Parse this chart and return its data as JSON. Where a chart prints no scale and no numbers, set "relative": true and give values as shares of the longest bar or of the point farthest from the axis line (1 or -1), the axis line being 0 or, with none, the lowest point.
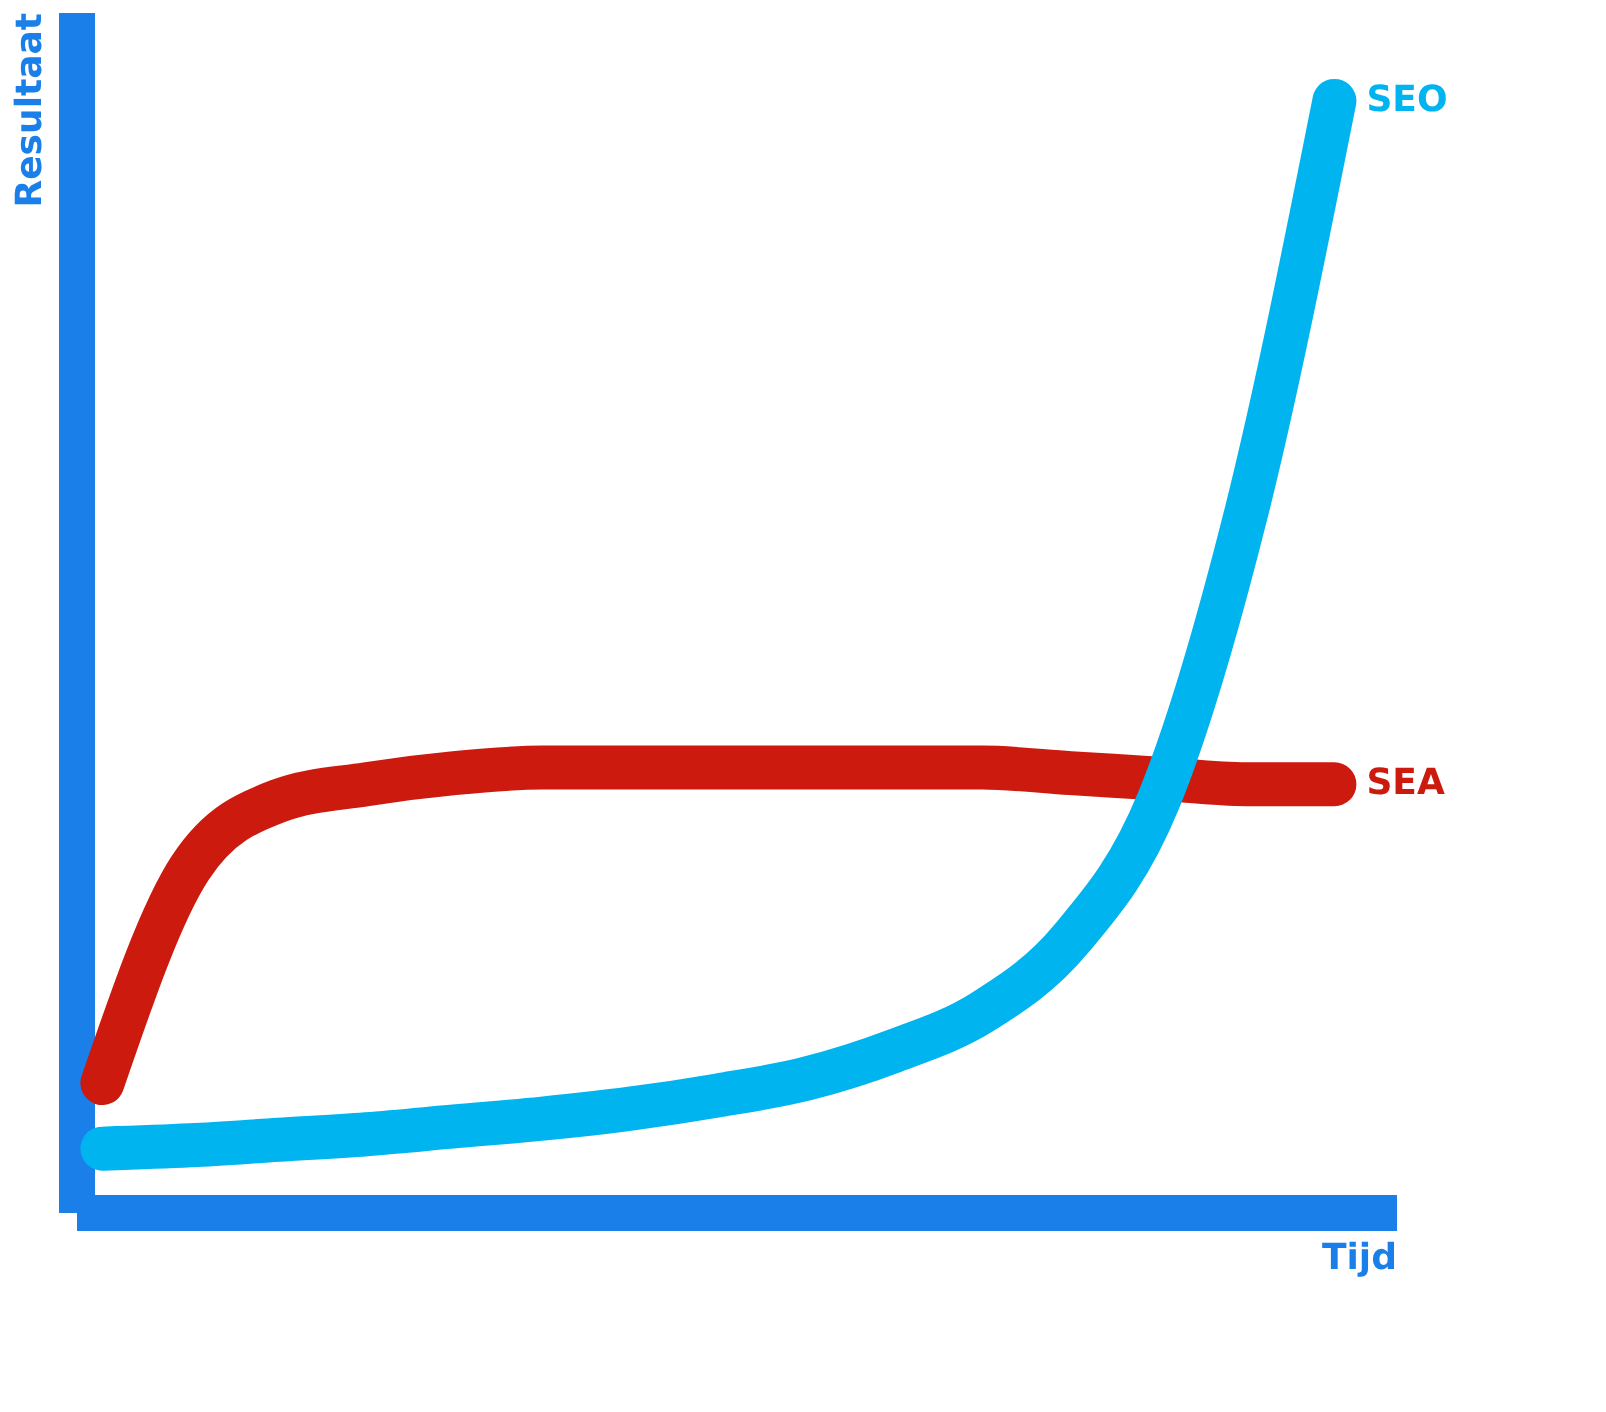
{
  "chart_data": {
    "type": "line",
    "relative": true,
    "xlabel": "Tijd",
    "ylabel": "Resultaat",
    "categories": [
      null,
      null,
      null,
      null,
      null,
      null,
      null,
      null,
      null,
      null,
      null,
      null,
      null,
      null,
      null
    ],
    "series": [
      {
        "name": "SEA",
        "color": "#cc1a0e",
        "values": [
          0.116,
          0.31,
          0.37,
          0.385,
          0.395,
          0.4,
          0.4,
          0.4,
          0.4,
          0.4,
          0.4,
          0.395,
          0.39,
          0.385,
          0.385
        ]
      },
      {
        "name": "SEO",
        "color": "#00b4f0",
        "values": [
          0.057,
          0.06,
          0.065,
          0.07,
          0.077,
          0.084,
          0.093,
          0.105,
          0.12,
          0.145,
          0.18,
          0.245,
          0.37,
          0.63,
          1.0
        ]
      }
    ]
  }
}
